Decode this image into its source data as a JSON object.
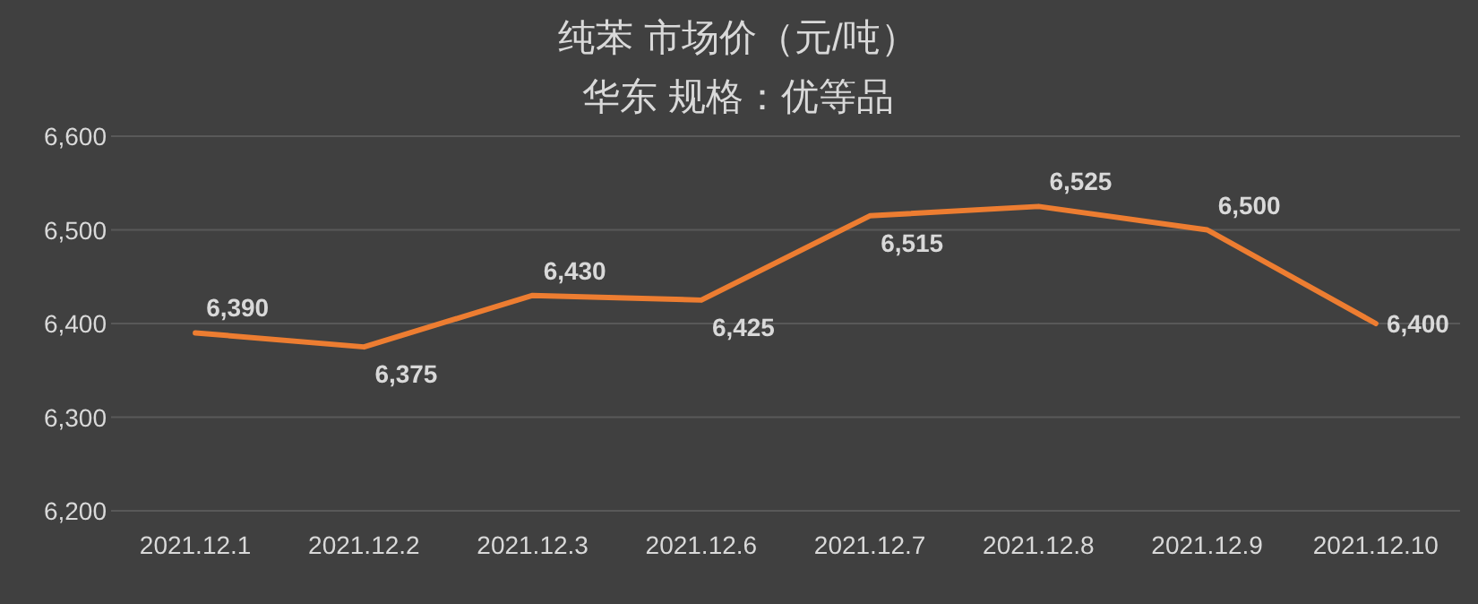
{
  "chart_data": {
    "type": "line",
    "title": "纯苯  市场价（元/吨）",
    "subtitle": "华东      规格：优等品",
    "categories": [
      "2021.12.1",
      "2021.12.2",
      "2021.12.3",
      "2021.12.6",
      "2021.12.7",
      "2021.12.8",
      "2021.12.9",
      "2021.12.10"
    ],
    "series": [
      {
        "color": "#ed7d31",
        "values": [
          6390,
          6375,
          6430,
          6425,
          6515,
          6525,
          6500,
          6400
        ],
        "value_labels": [
          "6,390",
          "6,375",
          "6,430",
          "6,425",
          "6,515",
          "6,525",
          "6,500",
          "6,400"
        ]
      }
    ],
    "ylim": [
      6200,
      6600
    ],
    "yticks": [
      {
        "value": 6200,
        "label": "6,200"
      },
      {
        "value": 6300,
        "label": "6,300"
      },
      {
        "value": 6400,
        "label": "6,400"
      },
      {
        "value": 6500,
        "label": "6,500"
      },
      {
        "value": 6600,
        "label": "6,600"
      }
    ],
    "grid": "y",
    "marker": "none",
    "line_style": "solid"
  }
}
